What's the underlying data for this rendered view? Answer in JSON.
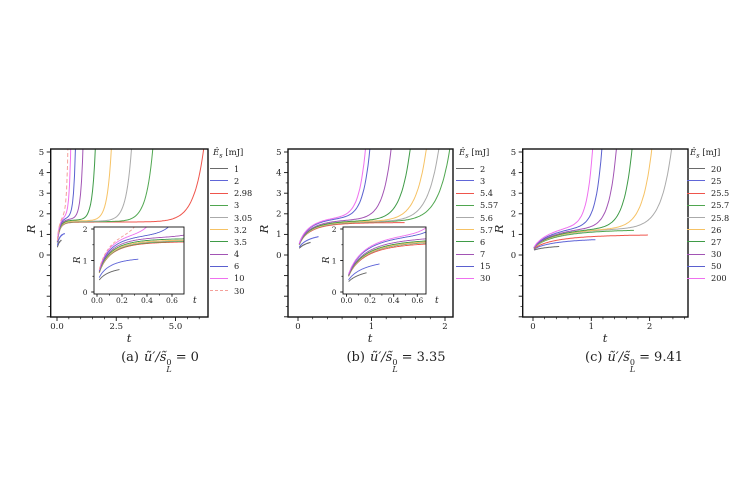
{
  "figure": {
    "background": "#ffffff",
    "text_color": "#222222",
    "legend_title": {
      "symbol": "Ê",
      "sub": "s",
      "unit": "[mJ]"
    },
    "formula": {
      "lhs": "ũ′/s̃",
      "sup": "0",
      "sub": "L",
      "eq": "="
    }
  },
  "chart_data": [
    {
      "type": "line",
      "panel": "a",
      "caption_label": "(a)",
      "u_value": "0",
      "xlabel": "t",
      "ylabel": "R",
      "xlim": [
        -0.27,
        6.37
      ],
      "ylim": [
        -3.0,
        5.15
      ],
      "xticks": [
        0,
        2.5,
        5
      ],
      "xtick_labels": [
        "0.0",
        "2.5",
        "5.0"
      ],
      "yticks": [
        0,
        1,
        2,
        3,
        4,
        5
      ],
      "ytick_labels": [
        "0",
        "1",
        "2",
        "3",
        "4",
        "5"
      ],
      "x_minor_step": 0.5,
      "y_minor_step": 0.5,
      "rise_T": 0.3,
      "legend_position": "right",
      "series": [
        {
          "label": "1",
          "color": "#6a6a6a",
          "outcome": "quench",
          "plateau": 0.82,
          "t_end": 0.18
        },
        {
          "label": "2",
          "color": "#6066d8",
          "outcome": "quench",
          "plateau": 1.1,
          "t_end": 0.33
        },
        {
          "label": "2.98",
          "color": "#ef554c",
          "outcome": "ignite",
          "plateau": 1.6,
          "t_top": 6.2
        },
        {
          "label": "3",
          "color": "#4fa64f",
          "outcome": "ignite",
          "plateau": 1.62,
          "t_top": 4.05
        },
        {
          "label": "3.05",
          "color": "#aaaaaa",
          "outcome": "ignite",
          "plateau": 1.64,
          "t_top": 3.15
        },
        {
          "label": "3.2",
          "color": "#f6c264",
          "outcome": "ignite",
          "plateau": 1.66,
          "t_top": 2.3
        },
        {
          "label": "3.5",
          "color": "#3f9b47",
          "outcome": "ignite",
          "plateau": 1.7,
          "t_top": 1.62
        },
        {
          "label": "4",
          "color": "#a254b4",
          "outcome": "ignite",
          "plateau": 1.76,
          "t_top": 1.1
        },
        {
          "label": "6",
          "color": "#5a60cf",
          "outcome": "ignite",
          "plateau": 1.84,
          "t_top": 0.78
        },
        {
          "label": "10",
          "color": "#ef70ef",
          "outcome": "ignite",
          "plateau": 1.92,
          "t_top": 0.58
        },
        {
          "label": "30",
          "color": "#f4a09a",
          "outcome": "ignite",
          "plateau": 1.98,
          "t_top": 0.46,
          "dash": true
        }
      ],
      "inset": {
        "xlim": [
          0,
          0.67
        ],
        "ylim": [
          0,
          2.1
        ],
        "xticks": [
          0,
          0.2,
          0.4,
          0.6
        ],
        "xtick_labels": [
          "0.0",
          "0.2",
          "0.4",
          "0.6"
        ],
        "yticks": [
          0,
          1,
          2
        ],
        "ytick_labels": [
          "0",
          "1",
          "2"
        ],
        "x_minor_step": 0.1,
        "y_minor_step": 0.5,
        "xlabel": "t",
        "ylabel": "R"
      }
    },
    {
      "type": "line",
      "panel": "b",
      "caption_label": "(b)",
      "u_value": "3.35",
      "xlabel": "t",
      "ylabel": "R",
      "xlim": [
        -0.14,
        2.11
      ],
      "ylim": [
        -3.0,
        5.15
      ],
      "xticks": [
        0,
        1,
        2
      ],
      "xtick_labels": [
        "0",
        "1",
        "2"
      ],
      "yticks": [
        0,
        1,
        2,
        3,
        4,
        5
      ],
      "ytick_labels": [
        "0",
        "1",
        "2",
        "3",
        "4",
        "5"
      ],
      "x_minor_step": 0.2,
      "y_minor_step": 0.5,
      "rise_T": 0.5,
      "legend_position": "right",
      "series": [
        {
          "label": "2",
          "color": "#6a6a6a",
          "outcome": "quench",
          "plateau": 0.8,
          "t_end": 0.17
        },
        {
          "label": "3",
          "color": "#6066d8",
          "outcome": "quench",
          "plateau": 1.05,
          "t_end": 0.28
        },
        {
          "label": "5.4",
          "color": "#ef554c",
          "outcome": "quench",
          "plateau": 1.58,
          "t_end": 1.45
        },
        {
          "label": "5.57",
          "color": "#4fa64f",
          "outcome": "ignite",
          "plateau": 1.62,
          "t_top": 2.07
        },
        {
          "label": "5.6",
          "color": "#aaaaaa",
          "outcome": "ignite",
          "plateau": 1.63,
          "t_top": 1.92
        },
        {
          "label": "5.7",
          "color": "#f6c264",
          "outcome": "ignite",
          "plateau": 1.65,
          "t_top": 1.75
        },
        {
          "label": "6",
          "color": "#3f9b47",
          "outcome": "ignite",
          "plateau": 1.68,
          "t_top": 1.53
        },
        {
          "label": "7",
          "color": "#a254b4",
          "outcome": "ignite",
          "plateau": 1.74,
          "t_top": 1.27
        },
        {
          "label": "15",
          "color": "#5a60cf",
          "outcome": "ignite",
          "plateau": 1.85,
          "t_top": 0.98
        },
        {
          "label": "30",
          "color": "#ef70ef",
          "outcome": "ignite",
          "plateau": 1.9,
          "t_top": 0.92
        }
      ],
      "inset": {
        "xlim": [
          0,
          0.67
        ],
        "ylim": [
          0,
          2.1
        ],
        "xticks": [
          0,
          0.2,
          0.4,
          0.6
        ],
        "xtick_labels": [
          "0.0",
          "0.2",
          "0.4",
          "0.6"
        ],
        "yticks": [
          0,
          1,
          2
        ],
        "ytick_labels": [
          "0",
          "1",
          "2"
        ],
        "x_minor_step": 0.1,
        "y_minor_step": 0.5,
        "xlabel": "t",
        "ylabel": "R"
      }
    },
    {
      "type": "line",
      "panel": "c",
      "caption_label": "(c)",
      "u_value": "9.41",
      "xlabel": "t",
      "ylabel": "R",
      "xlim": [
        -0.18,
        2.66
      ],
      "ylim": [
        -3.0,
        5.15
      ],
      "xticks": [
        0,
        1,
        2
      ],
      "xtick_labels": [
        "0",
        "1",
        "2"
      ],
      "yticks": [
        0,
        1,
        2,
        3,
        4,
        5
      ],
      "ytick_labels": [
        "0",
        "1",
        "2",
        "3",
        "4",
        "5"
      ],
      "x_minor_step": 0.2,
      "y_minor_step": 0.5,
      "rise_T": 1.4,
      "legend_position": "right",
      "series": [
        {
          "label": "20",
          "color": "#6a6a6a",
          "outcome": "quench",
          "plateau": 0.52,
          "t_end": 0.45
        },
        {
          "label": "25",
          "color": "#6066d8",
          "outcome": "quench",
          "plateau": 0.82,
          "t_end": 1.07
        },
        {
          "label": "25.5",
          "color": "#ef554c",
          "outcome": "quench",
          "plateau": 1.0,
          "t_end": 1.97
        },
        {
          "label": "25.7",
          "color": "#4fa64f",
          "outcome": "quench",
          "plateau": 1.25,
          "t_end": 1.73
        },
        {
          "label": "25.8",
          "color": "#aaaaaa",
          "outcome": "ignite",
          "plateau": 1.32,
          "t_top": 2.38
        },
        {
          "label": "26",
          "color": "#f6c264",
          "outcome": "ignite",
          "plateau": 1.34,
          "t_top": 2.04
        },
        {
          "label": "27",
          "color": "#3f9b47",
          "outcome": "ignite",
          "plateau": 1.38,
          "t_top": 1.7
        },
        {
          "label": "30",
          "color": "#a254b4",
          "outcome": "ignite",
          "plateau": 1.45,
          "t_top": 1.43
        },
        {
          "label": "50",
          "color": "#5a60cf",
          "outcome": "ignite",
          "plateau": 1.55,
          "t_top": 1.18
        },
        {
          "label": "200",
          "color": "#ef70ef",
          "outcome": "ignite",
          "plateau": 1.68,
          "t_top": 1.02
        }
      ]
    }
  ]
}
